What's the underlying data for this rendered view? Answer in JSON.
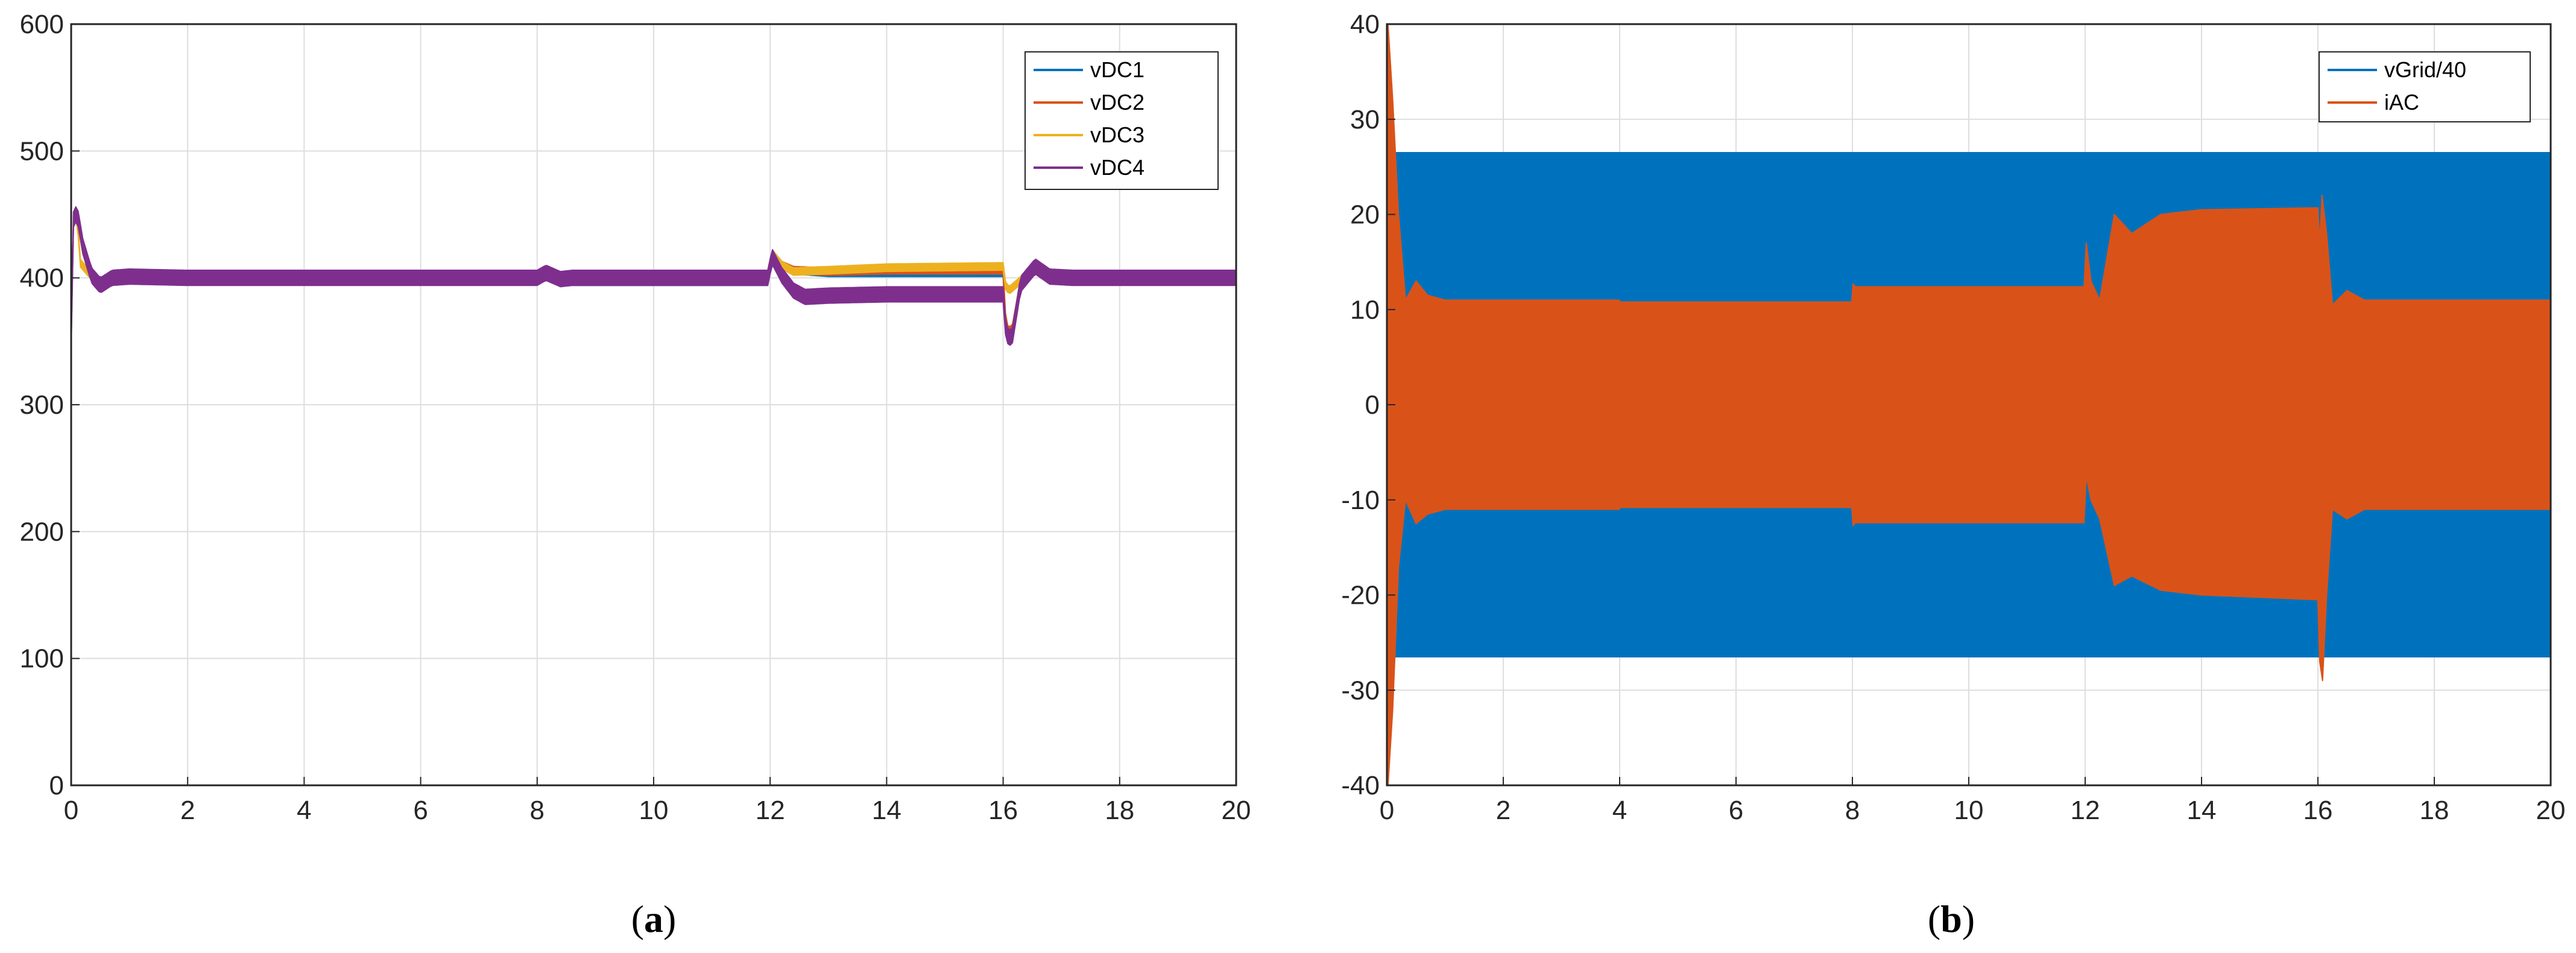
{
  "chart_data": [
    {
      "type": "line",
      "panel_label": "a",
      "xlim": [
        0,
        20
      ],
      "ylim": [
        0,
        600
      ],
      "xticks": [
        0,
        2,
        4,
        6,
        8,
        10,
        12,
        14,
        16,
        18,
        20
      ],
      "yticks": [
        0,
        100,
        200,
        300,
        400,
        500,
        600
      ],
      "grid": true,
      "legend": "top-right",
      "series": [
        {
          "name": "vDC1",
          "color": "#0072BD",
          "ripple": 3,
          "points": [
            [
              0,
              350
            ],
            [
              0.03,
              445
            ],
            [
              0.1,
              452
            ],
            [
              0.2,
              425
            ],
            [
              0.35,
              402
            ],
            [
              0.5,
              394
            ],
            [
              0.7,
              400
            ],
            [
              1,
              401
            ],
            [
              2,
              400
            ],
            [
              4,
              400
            ],
            [
              6,
              400
            ],
            [
              8,
              400
            ],
            [
              8.15,
              404
            ],
            [
              8.4,
              399
            ],
            [
              8.6,
              397
            ],
            [
              10,
              397
            ],
            [
              11.98,
              397
            ],
            [
              12.02,
              420
            ],
            [
              12.2,
              410
            ],
            [
              12.4,
              406
            ],
            [
              13,
              404
            ],
            [
              14,
              404
            ],
            [
              16,
              404
            ],
            [
              16.05,
              355
            ],
            [
              16.15,
              352
            ],
            [
              16.3,
              395
            ],
            [
              16.55,
              411
            ],
            [
              16.8,
              401
            ],
            [
              17.2,
              400
            ],
            [
              20,
              400
            ]
          ]
        },
        {
          "name": "vDC2",
          "color": "#D95319",
          "ripple": 3,
          "points": [
            [
              0,
              350
            ],
            [
              0.03,
              445
            ],
            [
              0.1,
              452
            ],
            [
              0.2,
              425
            ],
            [
              0.35,
              402
            ],
            [
              0.5,
              394
            ],
            [
              0.7,
              400
            ],
            [
              1,
              401
            ],
            [
              2,
              400
            ],
            [
              4,
              400
            ],
            [
              6,
              400
            ],
            [
              8,
              400
            ],
            [
              8.15,
              404
            ],
            [
              8.4,
              399
            ],
            [
              8.6,
              403
            ],
            [
              10,
              403
            ],
            [
              11.98,
              403
            ],
            [
              12.02,
              420
            ],
            [
              12.2,
              410
            ],
            [
              12.4,
              406
            ],
            [
              13,
              405
            ],
            [
              14,
              406
            ],
            [
              16,
              406
            ],
            [
              16.05,
              360
            ],
            [
              16.15,
              358
            ],
            [
              16.3,
              396
            ],
            [
              16.55,
              411
            ],
            [
              16.8,
              401
            ],
            [
              17.2,
              400
            ],
            [
              20,
              400
            ]
          ]
        },
        {
          "name": "vDC3",
          "color": "#EDB120",
          "ripple": 3,
          "points": [
            [
              0,
              350
            ],
            [
              0.03,
              448
            ],
            [
              0.1,
              452
            ],
            [
              0.15,
              412
            ],
            [
              0.3,
              404
            ],
            [
              0.5,
              396
            ],
            [
              0.7,
              400
            ],
            [
              1,
              401
            ],
            [
              2,
              400
            ],
            [
              4,
              400
            ],
            [
              6,
              400
            ],
            [
              8,
              400
            ],
            [
              8.15,
              404
            ],
            [
              8.4,
              399
            ],
            [
              8.6,
              403
            ],
            [
              10,
              403
            ],
            [
              11.98,
              403
            ],
            [
              12.02,
              420
            ],
            [
              12.2,
              410
            ],
            [
              12.4,
              405
            ],
            [
              13,
              406
            ],
            [
              14,
              408
            ],
            [
              16,
              409
            ],
            [
              16.03,
              395
            ],
            [
              16.1,
              390
            ],
            [
              16.3,
              398
            ],
            [
              16.55,
              411
            ],
            [
              16.8,
              401
            ],
            [
              17.2,
              400
            ],
            [
              20,
              400
            ]
          ]
        },
        {
          "name": "vDC4",
          "color": "#7E2F8E",
          "ripple": 6,
          "points": [
            [
              0,
              350
            ],
            [
              0.03,
              445
            ],
            [
              0.1,
              452
            ],
            [
              0.2,
              425
            ],
            [
              0.35,
              402
            ],
            [
              0.5,
              394
            ],
            [
              0.7,
              400
            ],
            [
              1,
              401
            ],
            [
              2,
              400
            ],
            [
              4,
              400
            ],
            [
              6,
              400
            ],
            [
              8,
              400
            ],
            [
              8.15,
              404
            ],
            [
              8.4,
              399
            ],
            [
              8.6,
              400
            ],
            [
              10,
              400
            ],
            [
              11.98,
              400
            ],
            [
              12.02,
              418
            ],
            [
              12.2,
              402
            ],
            [
              12.4,
              390
            ],
            [
              12.6,
              385
            ],
            [
              13,
              386
            ],
            [
              14,
              387
            ],
            [
              16,
              387
            ],
            [
              16.05,
              355
            ],
            [
              16.15,
              352
            ],
            [
              16.3,
              395
            ],
            [
              16.55,
              409
            ],
            [
              16.8,
              401
            ],
            [
              17.2,
              400
            ],
            [
              20,
              400
            ]
          ]
        }
      ]
    },
    {
      "type": "area",
      "panel_label": "b",
      "xlim": [
        0,
        20
      ],
      "ylim": [
        -40,
        40
      ],
      "xticks": [
        0,
        2,
        4,
        6,
        8,
        10,
        12,
        14,
        16,
        18,
        20
      ],
      "yticks": [
        -40,
        -30,
        -20,
        -10,
        0,
        10,
        20,
        30,
        40
      ],
      "grid": true,
      "legend": "top-right",
      "series": [
        {
          "name": "vGrid/40",
          "color": "#0072BD",
          "upper": [
            [
              0,
              0
            ],
            [
              0.02,
              26.5
            ],
            [
              20,
              26.5
            ]
          ],
          "lower": [
            [
              0,
              0
            ],
            [
              0.02,
              -26.5
            ],
            [
              20,
              -26.5
            ]
          ]
        },
        {
          "name": "iAC",
          "color": "#D95319",
          "upper": [
            [
              0,
              0
            ],
            [
              0.02,
              40
            ],
            [
              0.1,
              32
            ],
            [
              0.2,
              20
            ],
            [
              0.32,
              11
            ],
            [
              0.5,
              13
            ],
            [
              0.7,
              11.5
            ],
            [
              1,
              11
            ],
            [
              3.99,
              11
            ],
            [
              4.01,
              10.8
            ],
            [
              7.99,
              10.8
            ],
            [
              8.01,
              12.7
            ],
            [
              8.05,
              12.4
            ],
            [
              11.98,
              12.4
            ],
            [
              12.02,
              17
            ],
            [
              12.1,
              13
            ],
            [
              12.25,
              11
            ],
            [
              12.5,
              20
            ],
            [
              12.8,
              18
            ],
            [
              13.3,
              20
            ],
            [
              14,
              20.5
            ],
            [
              16,
              20.7
            ],
            [
              16.03,
              17
            ],
            [
              16.07,
              22
            ],
            [
              16.15,
              18
            ],
            [
              16.25,
              10.5
            ],
            [
              16.5,
              12
            ],
            [
              16.8,
              11
            ],
            [
              20,
              11
            ]
          ],
          "lower": [
            [
              0,
              0
            ],
            [
              0.02,
              -40
            ],
            [
              0.1,
              -32
            ],
            [
              0.2,
              -17
            ],
            [
              0.32,
              -10
            ],
            [
              0.5,
              -12.5
            ],
            [
              0.7,
              -11.5
            ],
            [
              1,
              -11
            ],
            [
              3.99,
              -11
            ],
            [
              4.01,
              -10.8
            ],
            [
              7.99,
              -10.8
            ],
            [
              8.01,
              -12.7
            ],
            [
              8.05,
              -12.4
            ],
            [
              11.98,
              -12.4
            ],
            [
              12.02,
              -7.5
            ],
            [
              12.1,
              -10
            ],
            [
              12.25,
              -12
            ],
            [
              12.5,
              -19
            ],
            [
              12.8,
              -18
            ],
            [
              13.3,
              -19.5
            ],
            [
              14,
              -20
            ],
            [
              16,
              -20.5
            ],
            [
              16.03,
              -27
            ],
            [
              16.08,
              -29
            ],
            [
              16.15,
              -20
            ],
            [
              16.25,
              -11
            ],
            [
              16.5,
              -12
            ],
            [
              16.8,
              -11
            ],
            [
              20,
              -11
            ]
          ]
        }
      ]
    }
  ]
}
